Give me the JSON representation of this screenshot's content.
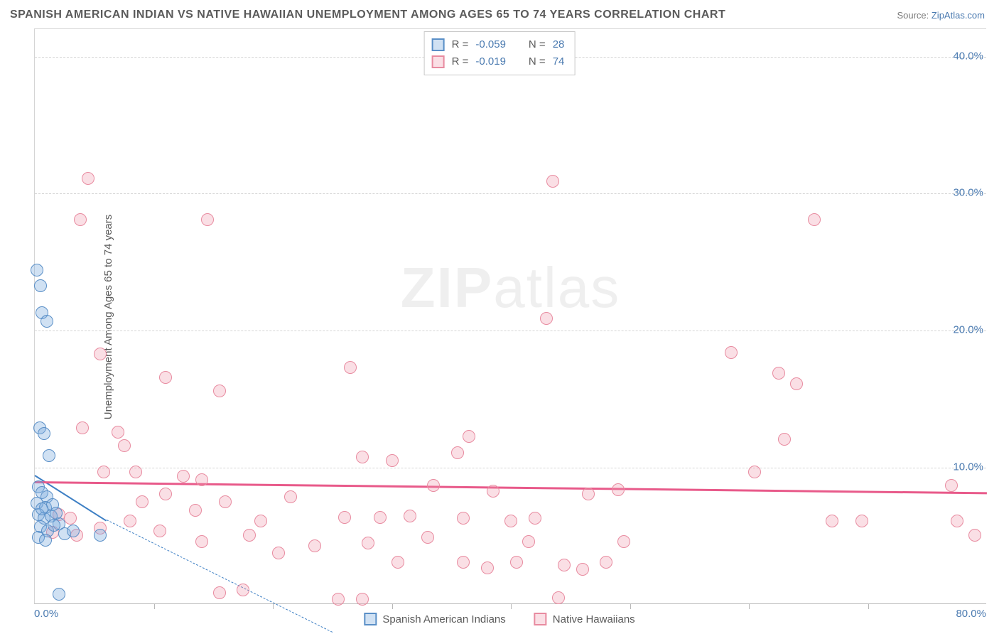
{
  "title": "SPANISH AMERICAN INDIAN VS NATIVE HAWAIIAN UNEMPLOYMENT AMONG AGES 65 TO 74 YEARS CORRELATION CHART",
  "source_prefix": "Source: ",
  "source_link": "ZipAtlas.com",
  "y_axis_label": "Unemployment Among Ages 65 to 74 years",
  "watermark_bold": "ZIP",
  "watermark_light": "atlas",
  "chart": {
    "type": "scatter",
    "background_color": "#ffffff",
    "grid_color": "#d5d5d5",
    "border_color": "#b8b8b8",
    "text_color": "#5a5a5a",
    "value_color": "#4a7ab0",
    "title_fontsize": 16,
    "label_fontsize": 15,
    "xlim": [
      0,
      80
    ],
    "ylim": [
      0,
      42
    ],
    "y_gridlines": [
      10,
      20,
      30,
      40
    ],
    "x_ticks": [
      10,
      20,
      30,
      40,
      50,
      60,
      70
    ],
    "y_tick_labels": [
      {
        "v": 10,
        "label": "10.0%"
      },
      {
        "v": 20,
        "label": "20.0%"
      },
      {
        "v": 30,
        "label": "30.0%"
      },
      {
        "v": 40,
        "label": "40.0%"
      }
    ],
    "x_tick_labels": [
      {
        "v": 0,
        "label": "0.0%"
      },
      {
        "v": 80,
        "label": "80.0%"
      }
    ],
    "point_radius": 9,
    "point_stroke_width": 1.5,
    "series": [
      {
        "name": "Spanish American Indians",
        "fill": "rgba(120,170,220,0.35)",
        "stroke": "#5a8fc7",
        "R": "-0.059",
        "N": "28",
        "trend": {
          "x1": 0,
          "y1": 9.5,
          "x2": 6,
          "y2": 6.2,
          "dash_to_x": 25,
          "dash_to_y": -2,
          "color": "#3d7fc4",
          "width": 2
        },
        "points": [
          [
            0.2,
            24.3
          ],
          [
            0.5,
            23.2
          ],
          [
            0.6,
            21.2
          ],
          [
            1.0,
            20.6
          ],
          [
            0.4,
            12.8
          ],
          [
            0.8,
            12.4
          ],
          [
            1.2,
            10.8
          ],
          [
            0.3,
            8.5
          ],
          [
            0.6,
            8.1
          ],
          [
            1.0,
            7.8
          ],
          [
            0.2,
            7.3
          ],
          [
            0.9,
            7.0
          ],
          [
            1.5,
            7.2
          ],
          [
            0.3,
            6.5
          ],
          [
            0.8,
            6.2
          ],
          [
            1.4,
            6.4
          ],
          [
            2.0,
            5.8
          ],
          [
            0.5,
            5.6
          ],
          [
            1.1,
            5.3
          ],
          [
            1.6,
            5.7
          ],
          [
            2.5,
            5.1
          ],
          [
            3.2,
            5.3
          ],
          [
            5.5,
            5.0
          ],
          [
            0.3,
            4.8
          ],
          [
            0.9,
            4.6
          ],
          [
            0.6,
            6.9
          ],
          [
            1.8,
            6.6
          ],
          [
            2.0,
            0.7
          ]
        ]
      },
      {
        "name": "Native Hawaiians",
        "fill": "rgba(240,150,170,0.30)",
        "stroke": "#e88ba0",
        "R": "-0.019",
        "N": "74",
        "trend": {
          "x1": 0,
          "y1": 9.0,
          "x2": 80,
          "y2": 8.2,
          "color": "#e85a8a",
          "width": 2.5
        },
        "points": [
          [
            4.5,
            31.0
          ],
          [
            3.8,
            28.0
          ],
          [
            14.5,
            28.0
          ],
          [
            43.5,
            30.8
          ],
          [
            58.5,
            18.3
          ],
          [
            65.5,
            28.0
          ],
          [
            5.5,
            18.2
          ],
          [
            11.0,
            16.5
          ],
          [
            15.5,
            15.5
          ],
          [
            26.5,
            17.2
          ],
          [
            62.5,
            16.8
          ],
          [
            64.0,
            16.0
          ],
          [
            43.0,
            20.8
          ],
          [
            4.0,
            12.8
          ],
          [
            7.0,
            12.5
          ],
          [
            7.5,
            11.5
          ],
          [
            36.5,
            12.2
          ],
          [
            63.0,
            12.0
          ],
          [
            5.8,
            9.6
          ],
          [
            8.5,
            9.6
          ],
          [
            12.5,
            9.3
          ],
          [
            14.0,
            9.0
          ],
          [
            27.5,
            10.7
          ],
          [
            30.0,
            10.4
          ],
          [
            33.5,
            8.6
          ],
          [
            35.5,
            11.0
          ],
          [
            38.5,
            8.2
          ],
          [
            49.0,
            8.3
          ],
          [
            60.5,
            9.6
          ],
          [
            77.0,
            8.6
          ],
          [
            9.0,
            7.4
          ],
          [
            11.0,
            8.0
          ],
          [
            13.5,
            6.8
          ],
          [
            16.0,
            7.4
          ],
          [
            19.0,
            6.0
          ],
          [
            21.5,
            7.8
          ],
          [
            26.0,
            6.3
          ],
          [
            29.0,
            6.3
          ],
          [
            31.5,
            6.4
          ],
          [
            36.0,
            6.2
          ],
          [
            42.0,
            6.2
          ],
          [
            46.5,
            8.0
          ],
          [
            67.0,
            6.0
          ],
          [
            69.5,
            6.0
          ],
          [
            77.5,
            6.0
          ],
          [
            3.0,
            6.2
          ],
          [
            5.5,
            5.5
          ],
          [
            8.0,
            6.0
          ],
          [
            10.5,
            5.3
          ],
          [
            14.0,
            4.5
          ],
          [
            18.0,
            5.0
          ],
          [
            20.5,
            3.7
          ],
          [
            23.5,
            4.2
          ],
          [
            28.0,
            4.4
          ],
          [
            30.5,
            3.0
          ],
          [
            33.0,
            4.8
          ],
          [
            36.0,
            3.0
          ],
          [
            38.0,
            2.6
          ],
          [
            40.5,
            3.0
          ],
          [
            41.5,
            4.5
          ],
          [
            44.5,
            2.8
          ],
          [
            46.0,
            2.5
          ],
          [
            48.0,
            3.0
          ],
          [
            49.5,
            4.5
          ],
          [
            79.0,
            5.0
          ],
          [
            15.5,
            0.8
          ],
          [
            17.5,
            1.0
          ],
          [
            25.5,
            0.3
          ],
          [
            27.5,
            0.3
          ],
          [
            44.0,
            0.4
          ],
          [
            3.5,
            5.0
          ],
          [
            1.5,
            5.2
          ],
          [
            2.0,
            6.5
          ],
          [
            40.0,
            6.0
          ]
        ]
      }
    ]
  },
  "stats_box": {
    "r_label": "R =",
    "n_label": "N ="
  },
  "legend": {
    "series1_label": "Spanish American Indians",
    "series2_label": "Native Hawaiians"
  }
}
